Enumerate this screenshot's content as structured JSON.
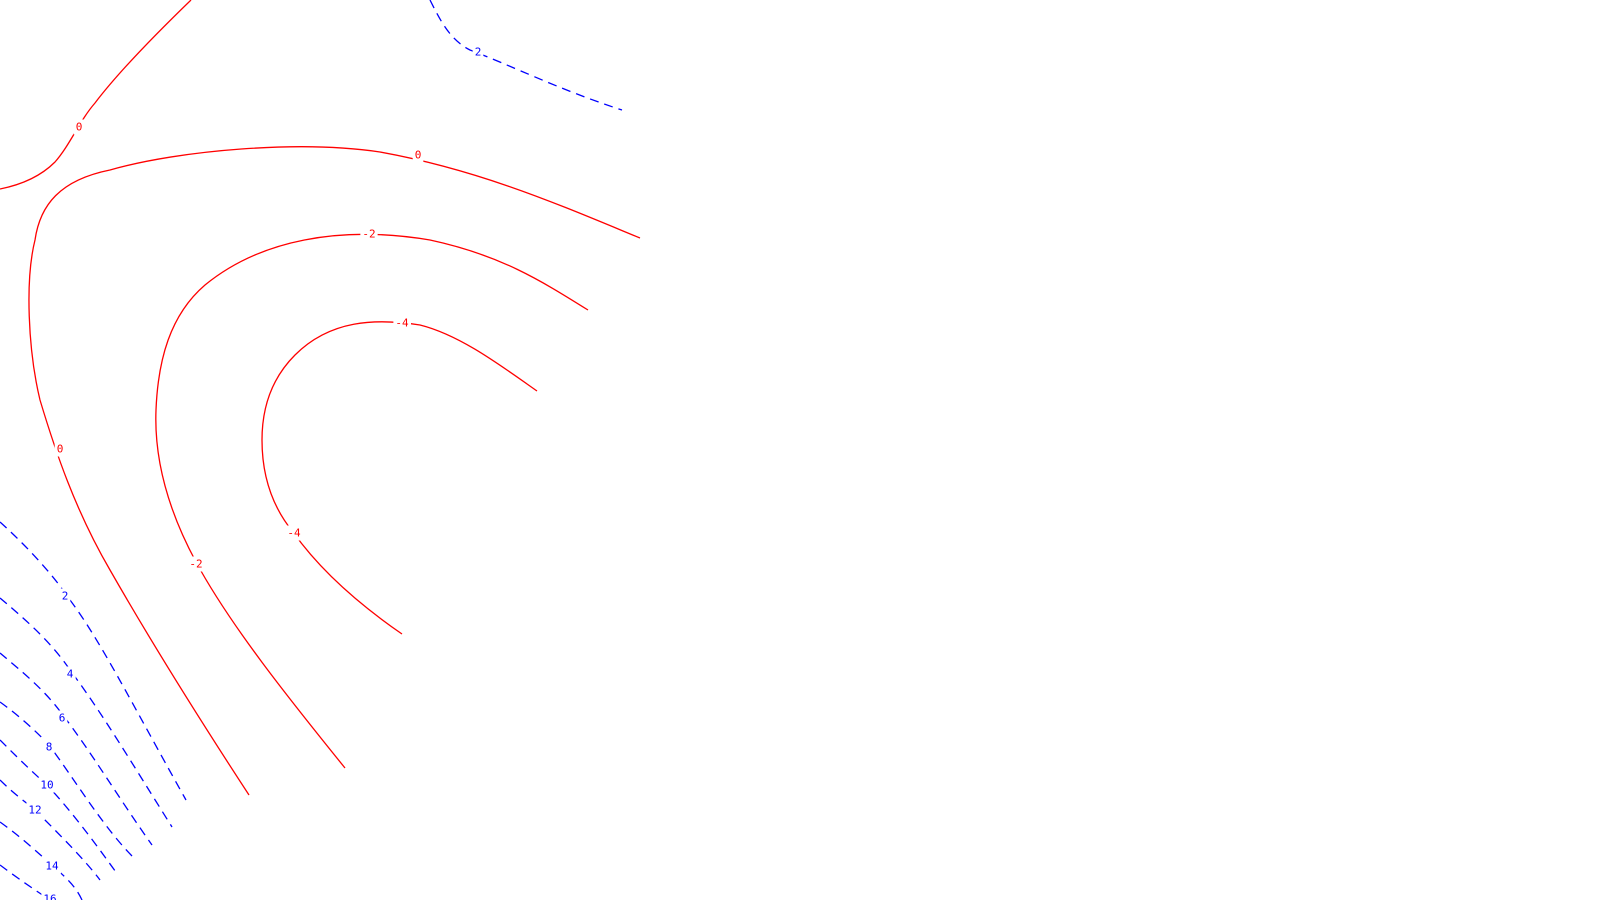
{
  "colors": {
    "negative": "#ff0000",
    "positive": "#0000ff",
    "background": "#ffffff"
  },
  "chart_data": {
    "type": "contour",
    "title": "",
    "xlabel": "",
    "ylabel": "",
    "grid": false,
    "legend": "none",
    "negative_style": "solid",
    "positive_style": "dashed",
    "levels": [
      {
        "level": 0,
        "labels": [
          "0"
        ]
      },
      {
        "level": 0,
        "labels": [
          "0",
          "0"
        ]
      },
      {
        "level": -2,
        "labels": [
          "-2",
          "-2"
        ]
      },
      {
        "level": -4,
        "labels": [
          "-4",
          "-4"
        ]
      },
      {
        "level": 2,
        "labels": [
          "2"
        ]
      },
      {
        "level": 2,
        "labels": [
          "2"
        ]
      },
      {
        "level": 4,
        "labels": [
          "4"
        ]
      },
      {
        "level": 6,
        "labels": [
          "6"
        ]
      },
      {
        "level": 8,
        "labels": [
          "8"
        ]
      },
      {
        "level": 10,
        "labels": [
          "10"
        ]
      },
      {
        "level": 12,
        "labels": [
          "12"
        ]
      },
      {
        "level": 14,
        "labels": [
          "14"
        ]
      },
      {
        "level": 16,
        "labels": [
          "16"
        ]
      }
    ]
  }
}
